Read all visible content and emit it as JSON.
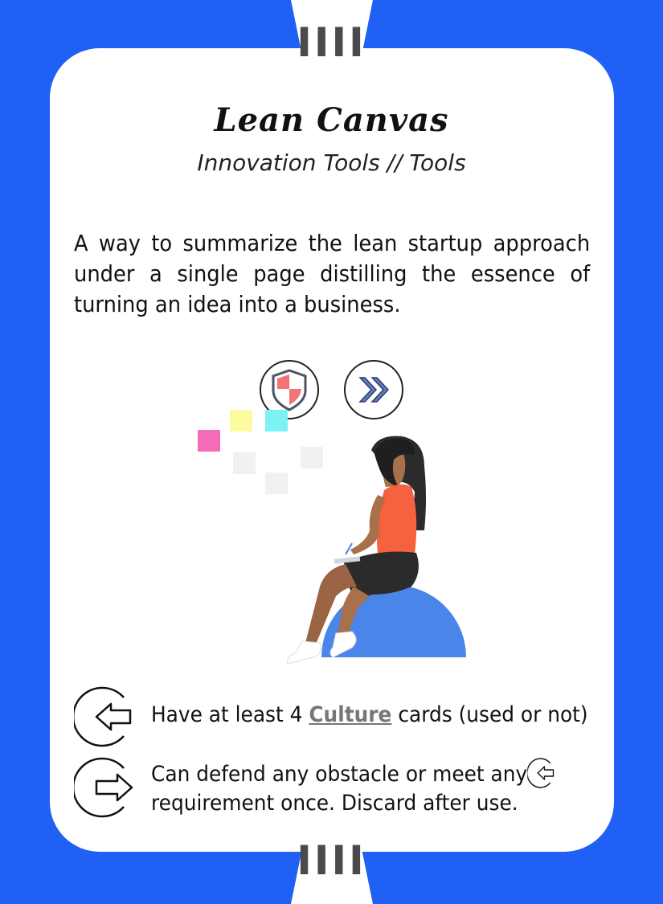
{
  "card": {
    "number": "IIII",
    "title": "Lean Canvas",
    "subtitle": "Innovation Tools // Tools",
    "description": "A way to summarize the lean startup approach under a single page distilling the essence of turning an idea into a business.",
    "rules": [
      {
        "icon": "arrow-in-icon",
        "prefix": "Have at least 4 ",
        "highlight": "Culture",
        "suffix": " cards (used or not)"
      },
      {
        "icon": "arrow-out-icon",
        "line1": "Can defend any obstacle or meet any",
        "line2": "requirement once. Discard after use."
      }
    ]
  },
  "colors": {
    "background": "#2160f5",
    "card": "#ffffff",
    "accent_gray": "#4a4a4a"
  }
}
